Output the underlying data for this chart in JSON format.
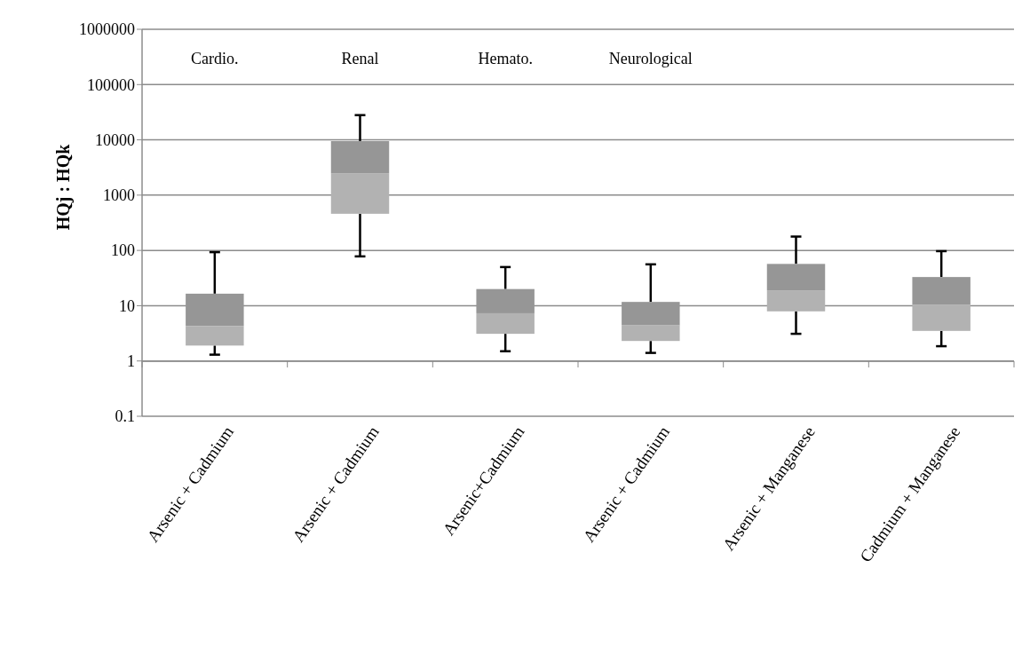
{
  "chart_data": {
    "type": "box",
    "ylabel": "HQj : HQk",
    "categories": [
      "Arsenic + Cadmium",
      "Arsenic + Cadmium",
      "Arsenic+Cadmium",
      "Arsenic + Cadmium",
      "Arsenic + Manganese",
      "Cadmium + Manganese"
    ],
    "boxes": [
      {
        "low": 1.3,
        "q1": 1.9,
        "median": 4.3,
        "q3": 16.5,
        "high": 93
      },
      {
        "low": 78,
        "q1": 460,
        "median": 2500,
        "q3": 9500,
        "high": 28000
      },
      {
        "low": 1.5,
        "q1": 3.1,
        "median": 7.3,
        "q3": 20,
        "high": 50
      },
      {
        "low": 1.4,
        "q1": 2.3,
        "median": 4.4,
        "q3": 11.7,
        "high": 56
      },
      {
        "low": 3.1,
        "q1": 7.9,
        "median": 19,
        "q3": 57,
        "high": 178
      },
      {
        "low": 1.85,
        "q1": 3.5,
        "median": 10.5,
        "q3": 33,
        "high": 97
      }
    ],
    "color": "#969696",
    "colors": [
      "#b2b2b2",
      "#b2b2b2",
      "#b2b2b2",
      "#b2b2b2",
      "#b2b2b2",
      "#b2b2b2"
    ],
    "log": true,
    "ylim": [
      0.1,
      1000000
    ],
    "yticks": [
      0.1,
      1,
      10,
      100,
      1000,
      10000,
      100000,
      1000000
    ],
    "grid": "y",
    "annotations": [
      "Cardio.",
      "Renal",
      "Hemato.",
      "Neurological"
    ]
  }
}
